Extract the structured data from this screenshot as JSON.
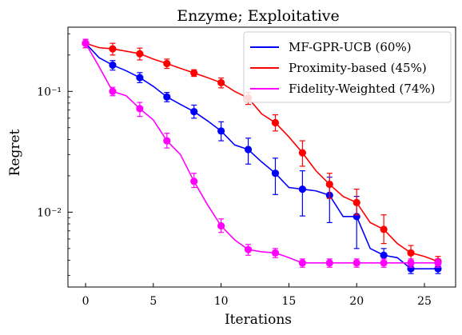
{
  "chart_data": {
    "type": "line",
    "title": "Enzyme; Exploitative",
    "xlabel": "Iterations",
    "ylabel": "Regret",
    "xlim": [
      -1.3,
      27.3
    ],
    "ylim": [
      0.0024,
      0.34
    ],
    "yscale": "log",
    "xticks": [
      0,
      5,
      10,
      15,
      20,
      25
    ],
    "xtick_labels": [
      "0",
      "5",
      "10",
      "15",
      "20",
      "25"
    ],
    "yticks": [
      0.01,
      0.1
    ],
    "ytick_labels": [
      "10⁻²",
      "10⁻¹"
    ],
    "grid": false,
    "legend_position": "top-right",
    "series": [
      {
        "name": "MF-GPR-UCB (60%)",
        "color": "#0000ff",
        "x": [
          0,
          1,
          2,
          3,
          4,
          5,
          6,
          7,
          8,
          9,
          10,
          11,
          12,
          13,
          14,
          15,
          16,
          17,
          18,
          19,
          20,
          21,
          22,
          23,
          24,
          25,
          26
        ],
        "y": [
          0.25,
          0.19,
          0.165,
          0.148,
          0.13,
          0.11,
          0.09,
          0.078,
          0.068,
          0.057,
          0.047,
          0.036,
          0.033,
          0.026,
          0.021,
          0.016,
          0.0155,
          0.015,
          0.0138,
          0.0092,
          0.0092,
          0.005,
          0.0044,
          0.0042,
          0.0034,
          0.0034,
          0.0034
        ],
        "markers_x": [
          0,
          2,
          4,
          6,
          8,
          10,
          12,
          14,
          16,
          18,
          20,
          22,
          24,
          26
        ],
        "markers_y": [
          0.25,
          0.165,
          0.13,
          0.09,
          0.068,
          0.047,
          0.033,
          0.021,
          0.0155,
          0.0138,
          0.0092,
          0.0044,
          0.0034,
          0.0034
        ],
        "err_low": [
          0.23,
          0.15,
          0.118,
          0.082,
          0.06,
          0.039,
          0.025,
          0.014,
          0.0093,
          0.0082,
          0.005,
          0.0038,
          0.0031,
          0.0031
        ],
        "err_high": [
          0.27,
          0.18,
          0.143,
          0.098,
          0.077,
          0.056,
          0.041,
          0.028,
          0.022,
          0.0195,
          0.0135,
          0.005,
          0.0038,
          0.0038
        ]
      },
      {
        "name": "Proximity-based (45%)",
        "color": "#ff0000",
        "x": [
          0,
          1,
          2,
          3,
          4,
          5,
          6,
          7,
          8,
          9,
          10,
          11,
          12,
          13,
          14,
          15,
          16,
          17,
          18,
          19,
          20,
          21,
          22,
          23,
          24,
          25,
          26
        ],
        "y": [
          0.25,
          0.23,
          0.225,
          0.215,
          0.205,
          0.185,
          0.17,
          0.155,
          0.142,
          0.13,
          0.118,
          0.1,
          0.088,
          0.065,
          0.055,
          0.042,
          0.031,
          0.022,
          0.017,
          0.0135,
          0.012,
          0.0082,
          0.0072,
          0.0055,
          0.0046,
          0.0043,
          0.0039
        ],
        "markers_x": [
          0,
          2,
          4,
          6,
          8,
          10,
          12,
          14,
          16,
          18,
          20,
          22,
          24,
          26
        ],
        "markers_y": [
          0.25,
          0.225,
          0.205,
          0.17,
          0.142,
          0.118,
          0.088,
          0.055,
          0.031,
          0.017,
          0.012,
          0.0072,
          0.0046,
          0.0039
        ],
        "err_low": [
          0.23,
          0.2,
          0.182,
          0.155,
          0.133,
          0.107,
          0.078,
          0.047,
          0.024,
          0.013,
          0.0095,
          0.0055,
          0.004,
          0.0036
        ],
        "err_high": [
          0.27,
          0.25,
          0.228,
          0.185,
          0.151,
          0.129,
          0.098,
          0.064,
          0.039,
          0.021,
          0.0155,
          0.0095,
          0.0053,
          0.0043
        ]
      },
      {
        "name": "Fidelity-Weighted (74%)",
        "color": "#ff00ff",
        "x": [
          0,
          1,
          2,
          3,
          4,
          5,
          6,
          7,
          8,
          9,
          10,
          11,
          12,
          13,
          14,
          15,
          16,
          17,
          18,
          19,
          20,
          21,
          22,
          23,
          24,
          25,
          26
        ],
        "y": [
          0.25,
          0.16,
          0.1,
          0.092,
          0.072,
          0.058,
          0.039,
          0.03,
          0.018,
          0.0115,
          0.0077,
          0.0059,
          0.0049,
          0.0047,
          0.0046,
          0.0042,
          0.0038,
          0.0038,
          0.0038,
          0.0038,
          0.0038,
          0.0038,
          0.0038,
          0.0038,
          0.0038,
          0.0038,
          0.0038
        ],
        "markers_x": [
          0,
          2,
          4,
          6,
          8,
          10,
          12,
          14,
          16,
          18,
          20,
          22,
          24,
          26
        ],
        "markers_y": [
          0.25,
          0.1,
          0.072,
          0.039,
          0.018,
          0.0077,
          0.0049,
          0.0046,
          0.0038,
          0.0038,
          0.0038,
          0.0038,
          0.0038,
          0.0038
        ],
        "err_low": [
          0.23,
          0.092,
          0.062,
          0.034,
          0.016,
          0.0068,
          0.0044,
          0.0042,
          0.0035,
          0.0035,
          0.0035,
          0.0035,
          0.0035,
          0.0035
        ],
        "err_high": [
          0.27,
          0.108,
          0.081,
          0.045,
          0.021,
          0.0088,
          0.0054,
          0.005,
          0.0041,
          0.0041,
          0.0041,
          0.0041,
          0.0041,
          0.0041
        ]
      }
    ]
  }
}
